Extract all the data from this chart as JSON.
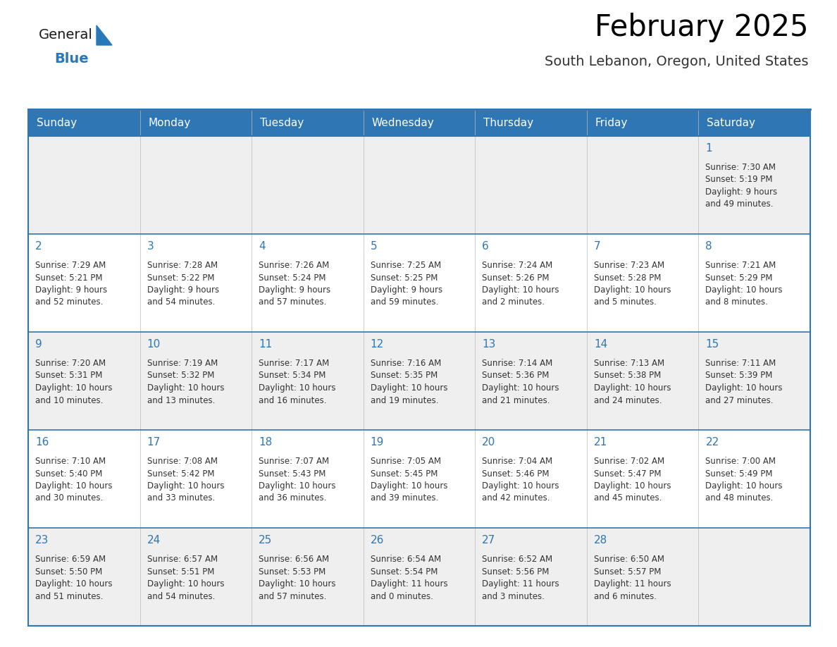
{
  "title": "February 2025",
  "subtitle": "South Lebanon, Oregon, United States",
  "days_of_week": [
    "Sunday",
    "Monday",
    "Tuesday",
    "Wednesday",
    "Thursday",
    "Friday",
    "Saturday"
  ],
  "header_bg_color": "#2E76B4",
  "header_text_color": "#FFFFFF",
  "cell_bg_white": "#FFFFFF",
  "cell_bg_gray": "#EFEFEF",
  "border_color": "#2E76B4",
  "row_line_color": "#2E76B4",
  "day_number_color": "#2E76B4",
  "cell_text_color": "#333333",
  "title_color": "#000000",
  "subtitle_color": "#333333",
  "logo_general_color": "#1a1a1a",
  "logo_blue_color": "#2979B8",
  "calendar_data": [
    [
      null,
      null,
      null,
      null,
      null,
      null,
      {
        "day": "1",
        "sunrise": "7:30 AM",
        "sunset": "5:19 PM",
        "daylight": "9 hours",
        "daylight2": "and 49 minutes."
      }
    ],
    [
      {
        "day": "2",
        "sunrise": "7:29 AM",
        "sunset": "5:21 PM",
        "daylight": "9 hours",
        "daylight2": "and 52 minutes."
      },
      {
        "day": "3",
        "sunrise": "7:28 AM",
        "sunset": "5:22 PM",
        "daylight": "9 hours",
        "daylight2": "and 54 minutes."
      },
      {
        "day": "4",
        "sunrise": "7:26 AM",
        "sunset": "5:24 PM",
        "daylight": "9 hours",
        "daylight2": "and 57 minutes."
      },
      {
        "day": "5",
        "sunrise": "7:25 AM",
        "sunset": "5:25 PM",
        "daylight": "9 hours",
        "daylight2": "and 59 minutes."
      },
      {
        "day": "6",
        "sunrise": "7:24 AM",
        "sunset": "5:26 PM",
        "daylight": "10 hours",
        "daylight2": "and 2 minutes."
      },
      {
        "day": "7",
        "sunrise": "7:23 AM",
        "sunset": "5:28 PM",
        "daylight": "10 hours",
        "daylight2": "and 5 minutes."
      },
      {
        "day": "8",
        "sunrise": "7:21 AM",
        "sunset": "5:29 PM",
        "daylight": "10 hours",
        "daylight2": "and 8 minutes."
      }
    ],
    [
      {
        "day": "9",
        "sunrise": "7:20 AM",
        "sunset": "5:31 PM",
        "daylight": "10 hours",
        "daylight2": "and 10 minutes."
      },
      {
        "day": "10",
        "sunrise": "7:19 AM",
        "sunset": "5:32 PM",
        "daylight": "10 hours",
        "daylight2": "and 13 minutes."
      },
      {
        "day": "11",
        "sunrise": "7:17 AM",
        "sunset": "5:34 PM",
        "daylight": "10 hours",
        "daylight2": "and 16 minutes."
      },
      {
        "day": "12",
        "sunrise": "7:16 AM",
        "sunset": "5:35 PM",
        "daylight": "10 hours",
        "daylight2": "and 19 minutes."
      },
      {
        "day": "13",
        "sunrise": "7:14 AM",
        "sunset": "5:36 PM",
        "daylight": "10 hours",
        "daylight2": "and 21 minutes."
      },
      {
        "day": "14",
        "sunrise": "7:13 AM",
        "sunset": "5:38 PM",
        "daylight": "10 hours",
        "daylight2": "and 24 minutes."
      },
      {
        "day": "15",
        "sunrise": "7:11 AM",
        "sunset": "5:39 PM",
        "daylight": "10 hours",
        "daylight2": "and 27 minutes."
      }
    ],
    [
      {
        "day": "16",
        "sunrise": "7:10 AM",
        "sunset": "5:40 PM",
        "daylight": "10 hours",
        "daylight2": "and 30 minutes."
      },
      {
        "day": "17",
        "sunrise": "7:08 AM",
        "sunset": "5:42 PM",
        "daylight": "10 hours",
        "daylight2": "and 33 minutes."
      },
      {
        "day": "18",
        "sunrise": "7:07 AM",
        "sunset": "5:43 PM",
        "daylight": "10 hours",
        "daylight2": "and 36 minutes."
      },
      {
        "day": "19",
        "sunrise": "7:05 AM",
        "sunset": "5:45 PM",
        "daylight": "10 hours",
        "daylight2": "and 39 minutes."
      },
      {
        "day": "20",
        "sunrise": "7:04 AM",
        "sunset": "5:46 PM",
        "daylight": "10 hours",
        "daylight2": "and 42 minutes."
      },
      {
        "day": "21",
        "sunrise": "7:02 AM",
        "sunset": "5:47 PM",
        "daylight": "10 hours",
        "daylight2": "and 45 minutes."
      },
      {
        "day": "22",
        "sunrise": "7:00 AM",
        "sunset": "5:49 PM",
        "daylight": "10 hours",
        "daylight2": "and 48 minutes."
      }
    ],
    [
      {
        "day": "23",
        "sunrise": "6:59 AM",
        "sunset": "5:50 PM",
        "daylight": "10 hours",
        "daylight2": "and 51 minutes."
      },
      {
        "day": "24",
        "sunrise": "6:57 AM",
        "sunset": "5:51 PM",
        "daylight": "10 hours",
        "daylight2": "and 54 minutes."
      },
      {
        "day": "25",
        "sunrise": "6:56 AM",
        "sunset": "5:53 PM",
        "daylight": "10 hours",
        "daylight2": "and 57 minutes."
      },
      {
        "day": "26",
        "sunrise": "6:54 AM",
        "sunset": "5:54 PM",
        "daylight": "11 hours",
        "daylight2": "and 0 minutes."
      },
      {
        "day": "27",
        "sunrise": "6:52 AM",
        "sunset": "5:56 PM",
        "daylight": "11 hours",
        "daylight2": "and 3 minutes."
      },
      {
        "day": "28",
        "sunrise": "6:50 AM",
        "sunset": "5:57 PM",
        "daylight": "11 hours",
        "daylight2": "and 6 minutes."
      },
      null
    ]
  ],
  "row_bg": [
    "#EFEFEF",
    "#FFFFFF",
    "#EFEFEF",
    "#FFFFFF",
    "#EFEFEF"
  ]
}
